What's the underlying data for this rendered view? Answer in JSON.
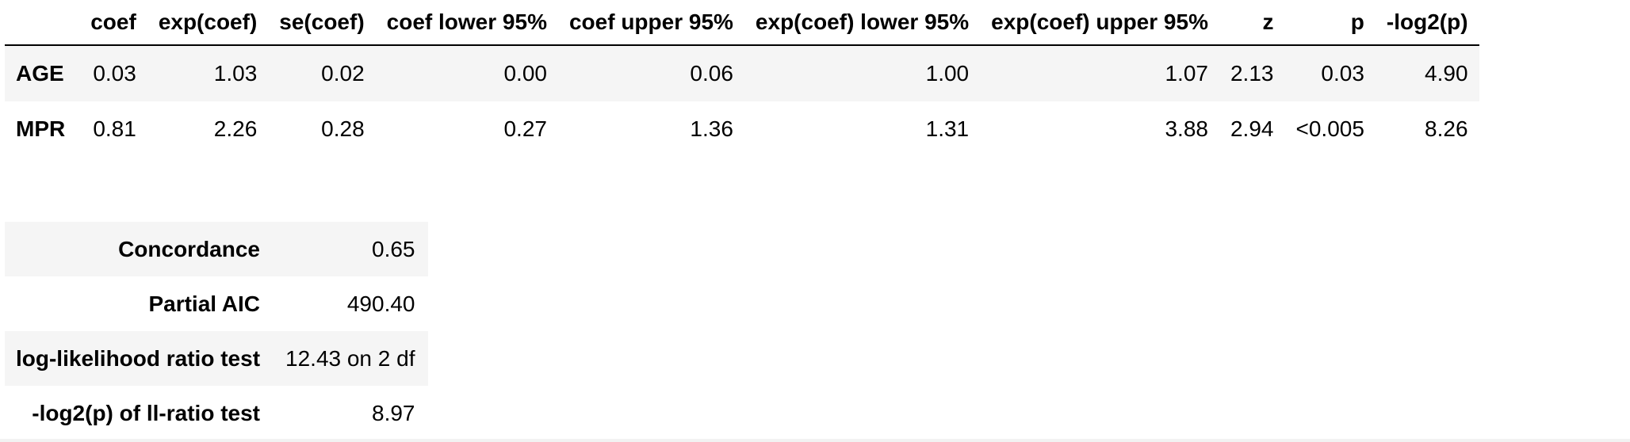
{
  "coef_table": {
    "columns": [
      "coef",
      "exp(coef)",
      "se(coef)",
      "coef lower 95%",
      "coef upper 95%",
      "exp(coef) lower 95%",
      "exp(coef) upper 95%",
      "z",
      "p",
      "-log2(p)"
    ],
    "rows": [
      {
        "label": "AGE",
        "values": [
          "0.03",
          "1.03",
          "0.02",
          "0.00",
          "0.06",
          "1.00",
          "1.07",
          "2.13",
          "0.03",
          "4.90"
        ]
      },
      {
        "label": "MPR",
        "values": [
          "0.81",
          "2.26",
          "0.28",
          "0.27",
          "1.36",
          "1.31",
          "3.88",
          "2.94",
          "<0.005",
          "8.26"
        ]
      }
    ]
  },
  "summary_table": {
    "rows": [
      {
        "label": "Concordance",
        "value": "0.65"
      },
      {
        "label": "Partial AIC",
        "value": "490.40"
      },
      {
        "label": "log-likelihood ratio test",
        "value": "12.43 on 2 df"
      },
      {
        "label": "-log2(p) of ll-ratio test",
        "value": "8.97"
      }
    ]
  }
}
